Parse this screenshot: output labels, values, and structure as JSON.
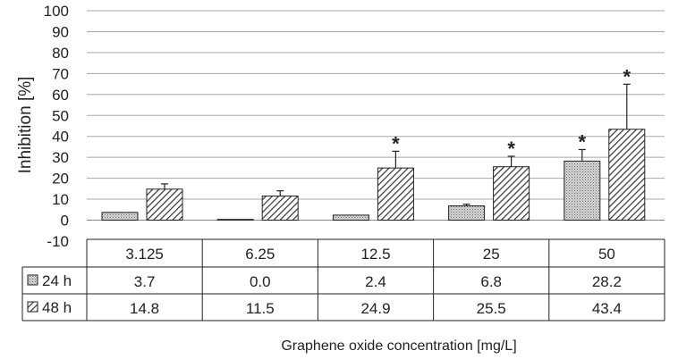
{
  "chart_data": {
    "type": "bar",
    "title": "",
    "ylabel": "Inhibition [%]",
    "xlabel": "Graphene oxide concentration [mg/L]",
    "ylim": [
      -10,
      100
    ],
    "yticks": [
      "-10",
      "0",
      "10",
      "20",
      "30",
      "40",
      "50",
      "60",
      "70",
      "80",
      "90",
      "100"
    ],
    "categories": [
      "3.125",
      "6.25",
      "12.5",
      "25",
      "50"
    ],
    "series": [
      {
        "name": "24 h",
        "values": [
          3.7,
          0.0,
          2.4,
          6.8,
          28.2
        ],
        "labels": [
          "3.7",
          "0.0",
          "2.4",
          "6.8",
          "28.2"
        ],
        "errors": [
          0,
          0,
          0,
          0.8,
          5.5
        ],
        "significant": [
          false,
          false,
          false,
          false,
          true
        ],
        "pattern": "dotted"
      },
      {
        "name": "48 h",
        "values": [
          14.8,
          11.5,
          24.9,
          25.5,
          43.4
        ],
        "labels": [
          "14.8",
          "11.5",
          "24.9",
          "25.5",
          "43.4"
        ],
        "errors": [
          2.5,
          2.5,
          8.0,
          5.0,
          21.5
        ],
        "significant": [
          false,
          false,
          true,
          true,
          true
        ],
        "pattern": "diagonal-hatch"
      }
    ],
    "significance_marker": "*",
    "grid": true,
    "legend": "data-table"
  }
}
